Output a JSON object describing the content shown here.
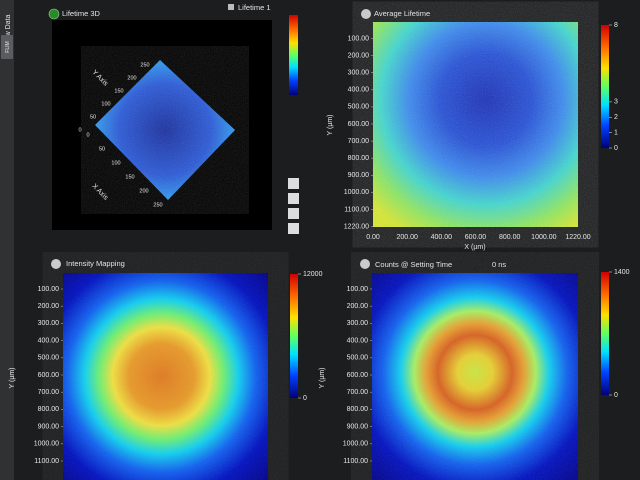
{
  "sidebar": {
    "tab": "Raw Data",
    "button": "FLIM"
  },
  "lifetime_3d": {
    "title": "Lifetime 3D",
    "selector": "Lifetime 1",
    "x_axis": "X Axis",
    "y_axis": "Y Axis",
    "x_ticks": [
      "0",
      "50",
      "100",
      "150",
      "200",
      "250"
    ],
    "y_ticks": [
      "0",
      "50",
      "100",
      "150",
      "200",
      "250"
    ]
  },
  "average_lifetime": {
    "title": "Average Lifetime",
    "y_label": "Y (µm)",
    "x_label": "X (µm)",
    "y_ticks": [
      "100.00",
      "200.00",
      "300.00",
      "400.00",
      "500.00",
      "600.00",
      "700.00",
      "800.00",
      "900.00",
      "1000.00",
      "1100.00",
      "1220.00"
    ],
    "x_ticks": [
      "0.00",
      "200.00",
      "400.00",
      "600.00",
      "800.00",
      "1000.00",
      "1220.00"
    ],
    "colorbar": {
      "lim": [
        0,
        8
      ],
      "ticks": [
        0,
        1,
        2,
        3,
        8
      ]
    }
  },
  "intensity_mapping": {
    "title": "Intensity Mapping",
    "y_label": "Y (µm)",
    "y_ticks": [
      "100.00",
      "200.00",
      "300.00",
      "400.00",
      "500.00",
      "600.00",
      "700.00",
      "800.00",
      "900.00",
      "1000.00",
      "1100.00"
    ],
    "colorbar": {
      "lim": [
        0,
        12000
      ],
      "ticks": [
        0,
        12000
      ]
    }
  },
  "counts": {
    "title": "Counts @ Setting Time",
    "time": "0 ns",
    "y_label": "Y (µm)",
    "y_ticks": [
      "100.00",
      "200.00",
      "300.00",
      "400.00",
      "500.00",
      "600.00",
      "700.00",
      "800.00",
      "900.00",
      "1000.00",
      "1100.00"
    ],
    "colorbar": {
      "lim": [
        0,
        1400
      ],
      "ticks": [
        0,
        1400
      ]
    }
  }
}
